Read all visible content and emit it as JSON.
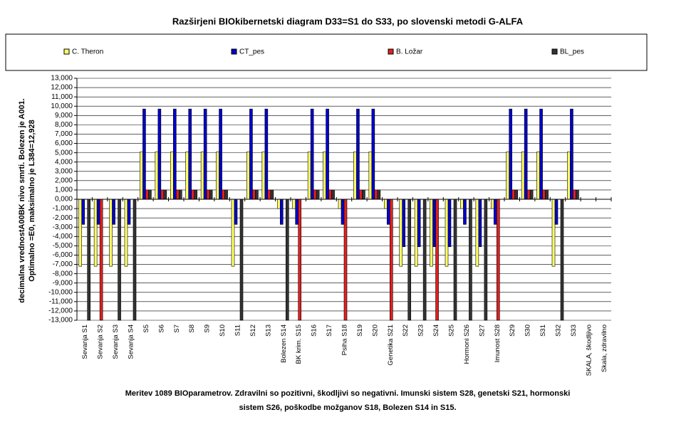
{
  "chart_data": {
    "type": "bar",
    "title": "Razširjeni BIOkibernetski diagram  D33=S1 do S33, po slovenski metodi G-ALFA",
    "ylabel": [
      "decimalna vrednostA00BK nivo smrti. Bolezen je A001.",
      "Optimalno =E0, maksimalno je L384=12,928"
    ],
    "caption": [
      "Meritev 1089 BIOparametrov. Zdravilni so pozitivni, škodljivi so negativni. Imunski sistem S28, genetski S21, hormonski",
      "sistem S26, poškodbe možganov S18, Bolezen S14 in S15."
    ],
    "legend": "top",
    "grid": true,
    "categories": [
      "Sevanja S1",
      "Sevanja S2",
      "Sevanja S3",
      "Sevanja S4",
      "S5",
      "S6",
      "S7",
      "S8",
      "S9",
      "S10",
      "S11",
      "S12",
      "S13",
      "Bolezen S14",
      "BK krim. S15",
      "S16",
      "S17",
      "Psiha S18",
      "S19",
      "S20",
      "Genetika S21",
      "S22",
      "S23",
      "S24",
      "S25",
      "Hormoni S26",
      "S27",
      "Imunost S28",
      "S29",
      "S30",
      "S31",
      "S32",
      "S33",
      "SKALA, škodljivo",
      "Skala, zdravilno"
    ],
    "series": [
      {
        "name": "C. Theron",
        "color": "#ffff66",
        "values": [
          -7.2,
          -7.2,
          -7.2,
          -7.2,
          5.1,
          5.1,
          5.1,
          5.1,
          5.1,
          5.1,
          -7.2,
          5.1,
          5.1,
          -1,
          -1,
          5.1,
          5.1,
          -1,
          5.1,
          5.1,
          -1,
          -7.2,
          -7.2,
          -7.2,
          -7.2,
          -1,
          -7.2,
          -1,
          5.1,
          5.1,
          5.1,
          -7.2,
          5.1,
          0,
          0
        ]
      },
      {
        "name": "CT_pes",
        "color": "#0000cc",
        "values": [
          -2.7,
          -2.7,
          -2.7,
          -2.7,
          9.7,
          9.7,
          9.7,
          9.7,
          9.7,
          9.7,
          -2.7,
          9.7,
          9.7,
          -2.7,
          -2.7,
          9.7,
          9.7,
          -2.7,
          9.7,
          9.7,
          -2.7,
          -5.1,
          -5.1,
          -5.1,
          -5.1,
          -2.7,
          -5.1,
          -2.7,
          9.7,
          9.7,
          9.7,
          -2.7,
          9.7,
          0,
          0
        ]
      },
      {
        "name": "B. Ložar",
        "color": "#e02020",
        "values": [
          0,
          -13,
          0,
          0,
          1,
          1,
          1,
          1,
          1,
          1,
          0,
          1,
          1,
          0,
          -13,
          1,
          1,
          -13,
          1,
          1,
          -13,
          0,
          0,
          -13,
          0,
          0,
          0,
          -13,
          1,
          1,
          1,
          0,
          1,
          0,
          0
        ]
      },
      {
        "name": "BL_pes",
        "color": "#333333",
        "values": [
          -13,
          0,
          -13,
          -13,
          1,
          1,
          1,
          1,
          1,
          1,
          -13,
          1,
          1,
          -13,
          0,
          1,
          1,
          0,
          1,
          1,
          0,
          -13,
          -13,
          0,
          -13,
          -13,
          -13,
          0,
          1,
          1,
          1,
          -13,
          1,
          0,
          0
        ]
      }
    ],
    "ylim": [
      -13,
      13
    ],
    "yticks": [
      {
        "value": 13,
        "label": "13,000"
      },
      {
        "value": 12,
        "label": "12,000"
      },
      {
        "value": 11,
        "label": "11,000"
      },
      {
        "value": 10,
        "label": "10,000"
      },
      {
        "value": 9,
        "label": "9,000"
      },
      {
        "value": 8,
        "label": "8,000"
      },
      {
        "value": 7,
        "label": "7,000"
      },
      {
        "value": 6,
        "label": "6,000"
      },
      {
        "value": 5,
        "label": "5,000"
      },
      {
        "value": 4,
        "label": "4,000"
      },
      {
        "value": 3,
        "label": "3,000"
      },
      {
        "value": 2,
        "label": "2,000"
      },
      {
        "value": 1,
        "label": "1,000"
      },
      {
        "value": 0,
        "label": "0,000"
      },
      {
        "value": -1,
        "label": "-1,000"
      },
      {
        "value": -2,
        "label": "-2,000"
      },
      {
        "value": -3,
        "label": "-3,000"
      },
      {
        "value": -4,
        "label": "-4,000"
      },
      {
        "value": -5,
        "label": "-5,000"
      },
      {
        "value": -6,
        "label": "-6,000"
      },
      {
        "value": -7,
        "label": "-7,000"
      },
      {
        "value": -8,
        "label": "-8,000"
      },
      {
        "value": -9,
        "label": "-9,000"
      },
      {
        "value": -10,
        "label": "-10,000"
      },
      {
        "value": -11,
        "label": "-11,000"
      },
      {
        "value": -12,
        "label": "-12,000"
      },
      {
        "value": -13,
        "label": "-13,000"
      }
    ]
  }
}
